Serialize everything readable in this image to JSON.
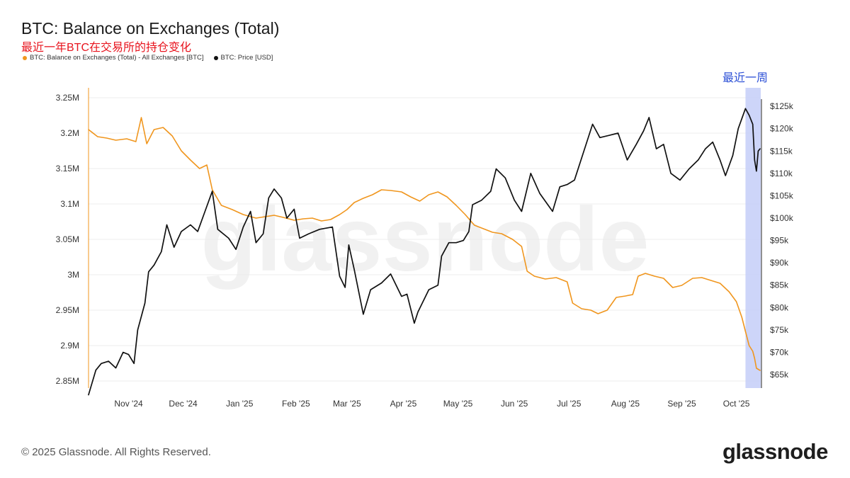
{
  "header": {
    "title": "BTC: Balance on Exchanges (Total)",
    "subtitle": "最近一年BTC在交易所的持仓变化"
  },
  "annotation": {
    "label": "最近一周"
  },
  "footer": {
    "copyright": "© 2025 Glassnode. All Rights Reserved.",
    "brand": "glassnode"
  },
  "watermark": "glassnode",
  "colors": {
    "balance": "#f0961e",
    "price": "#111111",
    "highlight": "#c4cef8",
    "annotation": "#2b4fd6"
  },
  "chart_data": {
    "type": "line",
    "legend": [
      {
        "name": "BTC: Balance on Exchanges (Total) - All Exchanges [BTC]",
        "color": "#f0961e"
      },
      {
        "name": "BTC: Price [USD]",
        "color": "#111111"
      }
    ],
    "x_ticks": [
      "Nov '24",
      "Dec '24",
      "Jan '25",
      "Feb '25",
      "Mar '25",
      "Apr '25",
      "May '25",
      "Jun '25",
      "Jul '25",
      "Aug '25",
      "Sep '25",
      "Oct '25"
    ],
    "x_range": [
      "2024-10-10",
      "2025-10-14"
    ],
    "highlight_range": [
      "2025-10-06",
      "2025-10-14"
    ],
    "y_left": {
      "ticks": [
        2850000,
        2900000,
        2950000,
        3000000,
        3050000,
        3100000,
        3150000,
        3200000,
        3250000
      ],
      "tick_labels": [
        "2.85M",
        "2.9M",
        "2.95M",
        "3M",
        "3.05M",
        "3.1M",
        "3.15M",
        "3.2M",
        "3.25M"
      ],
      "range": [
        2840000,
        3260000
      ]
    },
    "y_right": {
      "ticks": [
        65000,
        70000,
        75000,
        80000,
        85000,
        90000,
        95000,
        100000,
        105000,
        110000,
        115000,
        120000,
        125000
      ],
      "tick_labels": [
        "$65k",
        "$70k",
        "$75k",
        "$80k",
        "$85k",
        "$90k",
        "$95k",
        "$100k",
        "$105k",
        "$110k",
        "$115k",
        "$120k",
        "$125k"
      ],
      "range": [
        62000,
        128500
      ]
    },
    "series": [
      {
        "name": "BTC: Balance on Exchanges (Total) - All Exchanges [BTC]",
        "axis": "left",
        "points": [
          [
            "2024-10-10",
            3205000
          ],
          [
            "2024-10-15",
            3195000
          ],
          [
            "2024-10-20",
            3193000
          ],
          [
            "2024-10-25",
            3190000
          ],
          [
            "2024-10-31",
            3192000
          ],
          [
            "2024-11-05",
            3188000
          ],
          [
            "2024-11-08",
            3222000
          ],
          [
            "2024-11-11",
            3185000
          ],
          [
            "2024-11-15",
            3205000
          ],
          [
            "2024-11-20",
            3208000
          ],
          [
            "2024-11-25",
            3196000
          ],
          [
            "2024-11-30",
            3175000
          ],
          [
            "2024-12-05",
            3162000
          ],
          [
            "2024-12-10",
            3150000
          ],
          [
            "2024-12-14",
            3155000
          ],
          [
            "2024-12-17",
            3120000
          ],
          [
            "2024-12-22",
            3098000
          ],
          [
            "2024-12-28",
            3092000
          ],
          [
            "2025-01-03",
            3085000
          ],
          [
            "2025-01-10",
            3080000
          ],
          [
            "2025-01-15",
            3082000
          ],
          [
            "2025-01-20",
            3084000
          ],
          [
            "2025-01-25",
            3081000
          ],
          [
            "2025-01-31",
            3077000
          ],
          [
            "2025-02-05",
            3079000
          ],
          [
            "2025-02-10",
            3080000
          ],
          [
            "2025-02-15",
            3076000
          ],
          [
            "2025-02-20",
            3078000
          ],
          [
            "2025-02-25",
            3085000
          ],
          [
            "2025-03-01",
            3092000
          ],
          [
            "2025-03-05",
            3102000
          ],
          [
            "2025-03-10",
            3108000
          ],
          [
            "2025-03-15",
            3113000
          ],
          [
            "2025-03-20",
            3120000
          ],
          [
            "2025-03-25",
            3119000
          ],
          [
            "2025-03-31",
            3117000
          ],
          [
            "2025-04-05",
            3110000
          ],
          [
            "2025-04-10",
            3104000
          ],
          [
            "2025-04-15",
            3113000
          ],
          [
            "2025-04-20",
            3117000
          ],
          [
            "2025-04-25",
            3110000
          ],
          [
            "2025-04-30",
            3098000
          ],
          [
            "2025-05-05",
            3085000
          ],
          [
            "2025-05-10",
            3070000
          ],
          [
            "2025-05-15",
            3065000
          ],
          [
            "2025-05-20",
            3060000
          ],
          [
            "2025-05-25",
            3058000
          ],
          [
            "2025-05-31",
            3050000
          ],
          [
            "2025-06-05",
            3040000
          ],
          [
            "2025-06-08",
            3005000
          ],
          [
            "2025-06-12",
            2998000
          ],
          [
            "2025-06-18",
            2994000
          ],
          [
            "2025-06-24",
            2996000
          ],
          [
            "2025-06-30",
            2990000
          ],
          [
            "2025-07-03",
            2960000
          ],
          [
            "2025-07-08",
            2952000
          ],
          [
            "2025-07-13",
            2950000
          ],
          [
            "2025-07-17",
            2945000
          ],
          [
            "2025-07-22",
            2950000
          ],
          [
            "2025-07-27",
            2968000
          ],
          [
            "2025-08-01",
            2970000
          ],
          [
            "2025-08-05",
            2972000
          ],
          [
            "2025-08-08",
            2998000
          ],
          [
            "2025-08-12",
            3002000
          ],
          [
            "2025-08-17",
            2998000
          ],
          [
            "2025-08-22",
            2995000
          ],
          [
            "2025-08-27",
            2982000
          ],
          [
            "2025-09-01",
            2985000
          ],
          [
            "2025-09-07",
            2995000
          ],
          [
            "2025-09-12",
            2996000
          ],
          [
            "2025-09-17",
            2992000
          ],
          [
            "2025-09-22",
            2988000
          ],
          [
            "2025-09-27",
            2976000
          ],
          [
            "2025-10-01",
            2962000
          ],
          [
            "2025-10-04",
            2940000
          ],
          [
            "2025-10-06",
            2920000
          ],
          [
            "2025-10-08",
            2900000
          ],
          [
            "2025-10-10",
            2892000
          ],
          [
            "2025-10-11",
            2882000
          ],
          [
            "2025-10-12",
            2868000
          ],
          [
            "2025-10-14",
            2865000
          ]
        ]
      },
      {
        "name": "BTC: Price [USD]",
        "axis": "right",
        "points": [
          [
            "2024-10-10",
            60500
          ],
          [
            "2024-10-14",
            66000
          ],
          [
            "2024-10-17",
            67500
          ],
          [
            "2024-10-21",
            68000
          ],
          [
            "2024-10-25",
            66500
          ],
          [
            "2024-10-29",
            70000
          ],
          [
            "2024-11-01",
            69500
          ],
          [
            "2024-11-04",
            67500
          ],
          [
            "2024-11-06",
            75000
          ],
          [
            "2024-11-10",
            81000
          ],
          [
            "2024-11-12",
            88000
          ],
          [
            "2024-11-15",
            89500
          ],
          [
            "2024-11-19",
            92500
          ],
          [
            "2024-11-22",
            98500
          ],
          [
            "2024-11-26",
            93500
          ],
          [
            "2024-11-30",
            97000
          ],
          [
            "2024-12-05",
            98500
          ],
          [
            "2024-12-09",
            97000
          ],
          [
            "2024-12-13",
            101500
          ],
          [
            "2024-12-17",
            106000
          ],
          [
            "2024-12-20",
            97500
          ],
          [
            "2024-12-26",
            95500
          ],
          [
            "2024-12-30",
            93000
          ],
          [
            "2025-01-03",
            98000
          ],
          [
            "2025-01-07",
            101500
          ],
          [
            "2025-01-10",
            94500
          ],
          [
            "2025-01-14",
            96500
          ],
          [
            "2025-01-17",
            104500
          ],
          [
            "2025-01-20",
            106500
          ],
          [
            "2025-01-24",
            104500
          ],
          [
            "2025-01-27",
            100000
          ],
          [
            "2025-01-31",
            102000
          ],
          [
            "2025-02-03",
            95500
          ],
          [
            "2025-02-08",
            96500
          ],
          [
            "2025-02-14",
            97500
          ],
          [
            "2025-02-21",
            98000
          ],
          [
            "2025-02-25",
            87000
          ],
          [
            "2025-02-28",
            84500
          ],
          [
            "2025-03-02",
            94000
          ],
          [
            "2025-03-05",
            88500
          ],
          [
            "2025-03-10",
            78500
          ],
          [
            "2025-03-14",
            84000
          ],
          [
            "2025-03-20",
            85500
          ],
          [
            "2025-03-25",
            87500
          ],
          [
            "2025-03-31",
            82500
          ],
          [
            "2025-04-03",
            83000
          ],
          [
            "2025-04-07",
            76500
          ],
          [
            "2025-04-09",
            79000
          ],
          [
            "2025-04-15",
            84000
          ],
          [
            "2025-04-20",
            85000
          ],
          [
            "2025-04-22",
            91500
          ],
          [
            "2025-04-26",
            94500
          ],
          [
            "2025-04-30",
            94500
          ],
          [
            "2025-05-04",
            95000
          ],
          [
            "2025-05-07",
            97000
          ],
          [
            "2025-05-09",
            103000
          ],
          [
            "2025-05-14",
            104000
          ],
          [
            "2025-05-19",
            106000
          ],
          [
            "2025-05-22",
            111000
          ],
          [
            "2025-05-27",
            109000
          ],
          [
            "2025-06-01",
            104000
          ],
          [
            "2025-06-05",
            101500
          ],
          [
            "2025-06-10",
            110000
          ],
          [
            "2025-06-15",
            105500
          ],
          [
            "2025-06-22",
            101500
          ],
          [
            "2025-06-26",
            107000
          ],
          [
            "2025-06-30",
            107500
          ],
          [
            "2025-07-04",
            108500
          ],
          [
            "2025-07-10",
            116000
          ],
          [
            "2025-07-14",
            121000
          ],
          [
            "2025-07-18",
            118000
          ],
          [
            "2025-07-23",
            118500
          ],
          [
            "2025-07-28",
            119000
          ],
          [
            "2025-08-02",
            113000
          ],
          [
            "2025-08-07",
            116500
          ],
          [
            "2025-08-11",
            119500
          ],
          [
            "2025-08-14",
            122500
          ],
          [
            "2025-08-18",
            115500
          ],
          [
            "2025-08-22",
            116500
          ],
          [
            "2025-08-26",
            110000
          ],
          [
            "2025-08-31",
            108500
          ],
          [
            "2025-09-05",
            111000
          ],
          [
            "2025-09-10",
            113000
          ],
          [
            "2025-09-14",
            115500
          ],
          [
            "2025-09-18",
            117000
          ],
          [
            "2025-09-22",
            113000
          ],
          [
            "2025-09-25",
            109500
          ],
          [
            "2025-09-29",
            114000
          ],
          [
            "2025-10-02",
            120000
          ],
          [
            "2025-10-06",
            124500
          ],
          [
            "2025-10-08",
            123000
          ],
          [
            "2025-10-10",
            121000
          ],
          [
            "2025-10-11",
            113000
          ],
          [
            "2025-10-12",
            110500
          ],
          [
            "2025-10-13",
            115000
          ],
          [
            "2025-10-14",
            115500
          ]
        ]
      }
    ]
  }
}
